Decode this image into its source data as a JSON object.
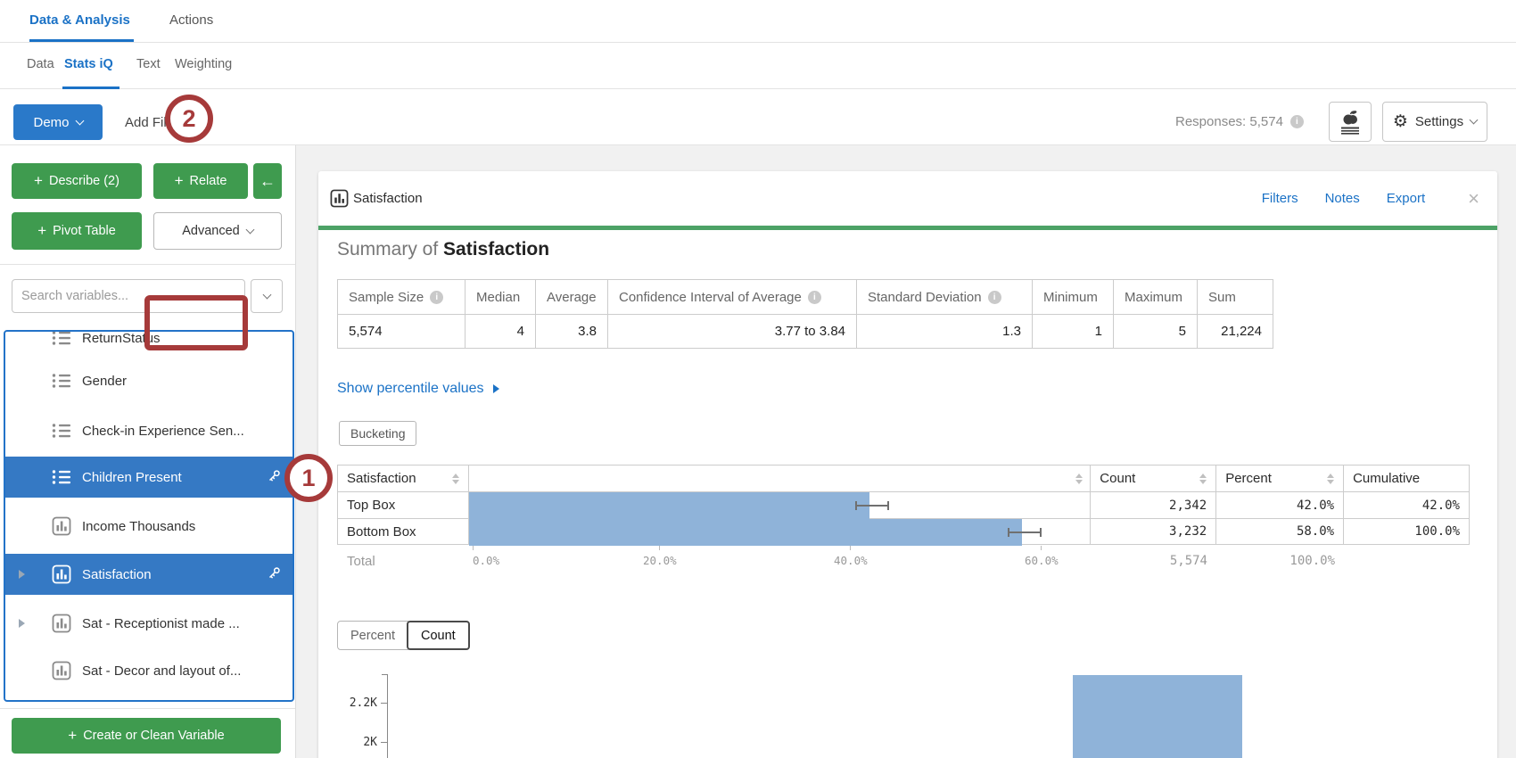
{
  "icons": {
    "plus": "+",
    "back_arrow": "←",
    "close": "×",
    "gear": "⚙",
    "info": "i"
  },
  "nav": {
    "tabs": [
      {
        "label": "Data & Analysis"
      },
      {
        "label": "Actions"
      }
    ],
    "active": "Data & Analysis"
  },
  "subnav": {
    "tabs": [
      {
        "label": "Data"
      },
      {
        "label": "Stats iQ"
      },
      {
        "label": "Text"
      },
      {
        "label": "Weighting"
      }
    ],
    "active": "Stats iQ"
  },
  "toolbar": {
    "demo_label": "Demo",
    "add_filter_label": "Add Filter",
    "responses_label": "Responses: 5,574",
    "settings_label": "Settings"
  },
  "annotations": {
    "step1": "1",
    "step2": "2"
  },
  "sidebar": {
    "describe_label": "Describe (2)",
    "relate_label": "Relate",
    "pivot_label": "Pivot Table",
    "advanced_label": "Advanced",
    "create_label": "Create or Clean Variable",
    "search_placeholder": "Search variables...",
    "variables": [
      {
        "name": "ReturnStatus",
        "type": "categorical"
      },
      {
        "name": "Gender",
        "type": "categorical"
      },
      {
        "name": "Check-in Experience Sen...",
        "type": "categorical"
      },
      {
        "name": "Children Present",
        "type": "categorical",
        "selected": true
      },
      {
        "name": "Income Thousands",
        "type": "numeric"
      },
      {
        "name": "Satisfaction",
        "type": "numeric",
        "selected": true,
        "expandable": true
      },
      {
        "name": "Sat - Receptionist made ...",
        "type": "numeric",
        "expandable": true
      },
      {
        "name": "Sat - Decor and layout of...",
        "type": "numeric"
      }
    ]
  },
  "card": {
    "title": "Satisfaction",
    "links": {
      "filters": "Filters",
      "notes": "Notes",
      "export": "Export"
    },
    "summary_prefix": "Summary of",
    "summary_subject": "Satisfaction",
    "stats_table": {
      "headers": [
        "Sample Size",
        "Median",
        "Average",
        "Confidence Interval of Average",
        "Standard Deviation",
        "Minimum",
        "Maximum",
        "Sum"
      ],
      "values": [
        "5,574",
        "4",
        "3.8",
        "3.77 to 3.84",
        "1.3",
        "1",
        "5",
        "21,224"
      ]
    },
    "percentile_link": "Show percentile values",
    "bucketing_label": "Bucketing",
    "freq_table": {
      "col_variable": "Satisfaction",
      "col_count": "Count",
      "col_percent": "Percent",
      "col_cumulative": "Cumulative",
      "rows": [
        {
          "label": "Top Box",
          "count": "2,342",
          "percent": "42.0%",
          "cumulative": "42.0%",
          "bar_pct": 42.0
        },
        {
          "label": "Bottom Box",
          "count": "3,232",
          "percent": "58.0%",
          "cumulative": "100.0%",
          "bar_pct": 58.0
        }
      ],
      "total": {
        "label": "Total",
        "count": "5,574",
        "percent": "100.0%"
      },
      "axis_ticks": [
        {
          "label": "0.0%",
          "pct": 0
        },
        {
          "label": "20.0%",
          "pct": 20
        },
        {
          "label": "40.0%",
          "pct": 40
        },
        {
          "label": "60.0%",
          "pct": 60
        }
      ]
    },
    "toggle": {
      "percent": "Percent",
      "count": "Count",
      "active": "Count"
    },
    "chart": {
      "ytick_top": "2.2K",
      "ytick_bottom": "2K",
      "bar_value": 2342
    }
  }
}
